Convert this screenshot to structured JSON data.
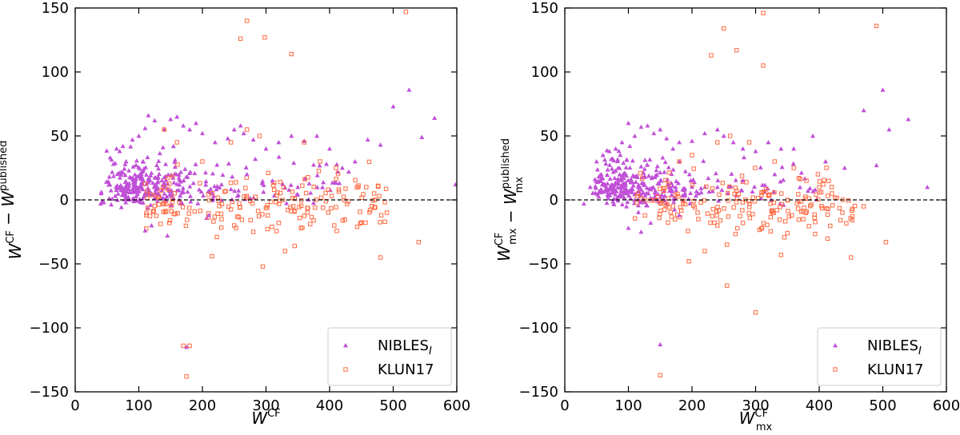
{
  "chart_data": [
    {
      "type": "scatter",
      "panel": "left",
      "xlabel": {
        "base": "W",
        "sup": "CF",
        "sub": ""
      },
      "ylabel": {
        "base1": "W",
        "sup1": "CF",
        "sub1": "",
        "minus": " − ",
        "base2": "W",
        "sup2": "published",
        "sub2": ""
      },
      "xlim": [
        0,
        600
      ],
      "ylim": [
        -150,
        150
      ],
      "xticks": [
        "0",
        "100",
        "200",
        "300",
        "400",
        "500",
        "600"
      ],
      "yticks": [
        "150",
        "100",
        "50",
        "0",
        "−50",
        "−100",
        "−150"
      ],
      "reference_line": {
        "y": 0,
        "style": "dashed"
      },
      "legend": {
        "location": "lower right",
        "entries": [
          {
            "label_base": "NIBLES",
            "label_sub": "I",
            "marker": "triangle",
            "color": "#c050d8"
          },
          {
            "label_base": "KLUN17",
            "label_sub": "",
            "marker": "square-open",
            "color": "#ff6a40"
          }
        ]
      },
      "series": [
        {
          "name": "NIBLES_I",
          "marker": "triangle",
          "color": "#c050d8",
          "cluster_points": 330,
          "x": [
            40,
            45,
            55,
            60,
            65,
            70,
            75,
            80,
            90,
            100,
            110,
            115,
            125,
            140,
            150,
            160,
            170,
            180,
            190,
            200,
            220,
            240,
            250,
            260,
            265,
            280,
            300,
            320,
            340,
            360,
            380,
            400,
            420,
            440,
            460,
            480,
            500,
            525,
            545,
            565,
            598,
            110,
            145,
            120,
            175,
            210,
            130,
            195,
            230,
            270,
            310,
            350,
            395,
            430
          ],
          "y": [
            -3,
            -2,
            33,
            28,
            40,
            38,
            42,
            30,
            47,
            50,
            56,
            66,
            62,
            55,
            63,
            65,
            58,
            55,
            60,
            52,
            45,
            48,
            55,
            58,
            52,
            47,
            40,
            45,
            50,
            46,
            50,
            40,
            25,
            30,
            47,
            43,
            73,
            86,
            49,
            64,
            12,
            -24,
            -28,
            -20,
            -115,
            -12,
            5,
            8,
            12,
            20,
            15,
            10,
            28,
            22
          ]
        },
        {
          "name": "KLUN17",
          "marker": "square-open",
          "color": "#ff6a40",
          "cluster_points": 190,
          "x": [
            170,
            175,
            180,
            260,
            270,
            298,
            340,
            520,
            540,
            215,
            295,
            330,
            345,
            480,
            140,
            160,
            200,
            245,
            270,
            290,
            360,
            385,
            410,
            445,
            470,
            490,
            230,
            250,
            280,
            320,
            355,
            375
          ],
          "y": [
            -114,
            -138,
            -114,
            126,
            140,
            127,
            114,
            147,
            -33,
            -44,
            -52,
            -40,
            -36,
            -45,
            55,
            45,
            30,
            45,
            55,
            50,
            45,
            30,
            25,
            10,
            5,
            -10,
            -15,
            -20,
            -25,
            -18,
            -22,
            -16
          ]
        }
      ]
    },
    {
      "type": "scatter",
      "panel": "right",
      "xlabel": {
        "base": "W",
        "sup": "CF",
        "sub": "mx"
      },
      "ylabel": {
        "base1": "W",
        "sup1": "CF",
        "sub1": "mx",
        "minus": " − ",
        "base2": "W",
        "sup2": "published",
        "sub2": "mx"
      },
      "xlim": [
        0,
        600
      ],
      "ylim": [
        -150,
        150
      ],
      "xticks": [
        "0",
        "100",
        "200",
        "300",
        "400",
        "500",
        "600"
      ],
      "yticks": [
        "150",
        "100",
        "50",
        "0",
        "−50",
        "−100",
        "−150"
      ],
      "reference_line": {
        "y": 0,
        "style": "dashed"
      },
      "legend": {
        "location": "lower right",
        "entries": [
          {
            "label_base": "NIBLES",
            "label_sub": "I",
            "marker": "triangle",
            "color": "#c050d8"
          },
          {
            "label_base": "KLUN17",
            "label_sub": "",
            "marker": "square-open",
            "color": "#ff6a40"
          }
        ]
      },
      "series": [
        {
          "name": "NIBLES_I",
          "marker": "triangle",
          "color": "#c050d8",
          "cluster_points": 330,
          "x": [
            30,
            40,
            50,
            60,
            70,
            80,
            90,
            100,
            110,
            120,
            130,
            140,
            150,
            160,
            170,
            180,
            200,
            220,
            240,
            250,
            265,
            280,
            300,
            320,
            340,
            360,
            390,
            410,
            440,
            470,
            490,
            500,
            510,
            540,
            570,
            100,
            120,
            135,
            150,
            180,
            210,
            240,
            280,
            330
          ],
          "y": [
            -3,
            10,
            30,
            35,
            38,
            40,
            45,
            60,
            50,
            57,
            58,
            52,
            55,
            48,
            40,
            45,
            46,
            52,
            55,
            50,
            45,
            40,
            38,
            45,
            40,
            40,
            50,
            30,
            25,
            70,
            27,
            86,
            55,
            63,
            10,
            -22,
            -25,
            -18,
            -113,
            -12,
            5,
            10,
            15,
            20
          ]
        },
        {
          "name": "KLUN17",
          "marker": "square-open",
          "color": "#ff6a40",
          "cluster_points": 190,
          "x": [
            150,
            300,
            255,
            250,
            230,
            270,
            312,
            312,
            490,
            505,
            195,
            220,
            255,
            450,
            340,
            180,
            200,
            240,
            260,
            290,
            330,
            360,
            380,
            400,
            420,
            470,
            210,
            240,
            280,
            310,
            350,
            375
          ],
          "y": [
            -137,
            -88,
            -67,
            134,
            113,
            117,
            146,
            105,
            136,
            -33,
            -48,
            -40,
            -35,
            -45,
            -43,
            30,
            35,
            45,
            50,
            45,
            30,
            25,
            15,
            10,
            5,
            -5,
            -15,
            -20,
            -18,
            -22,
            -26,
            -15
          ]
        }
      ]
    }
  ]
}
